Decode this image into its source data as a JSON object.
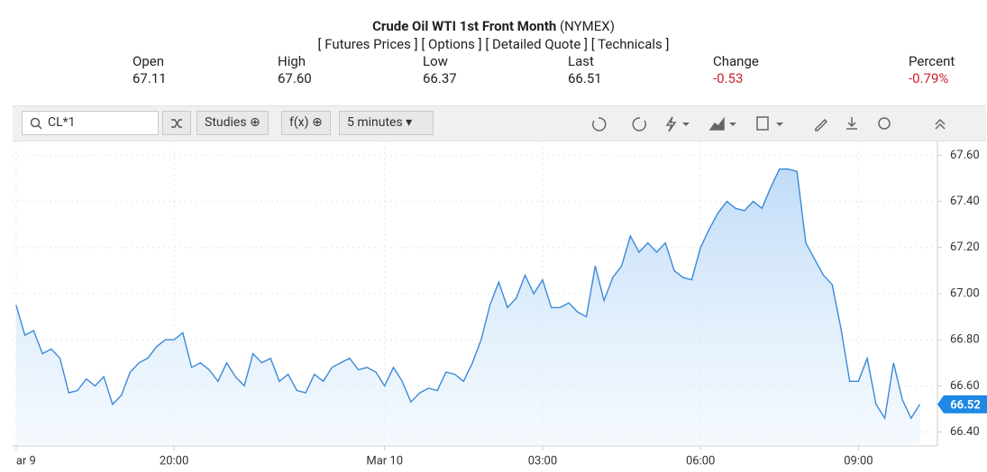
{
  "header": {
    "title": "Crude Oil WTI 1st Front Month",
    "exchange": "(NYMEX)",
    "links": [
      "[ Futures Prices ]",
      "[ Options ]",
      "[ Detailed Quote ]",
      "[ Technicals ]"
    ]
  },
  "quote": [
    {
      "label": "Open",
      "value": "67.11"
    },
    {
      "label": "High",
      "value": "67.60"
    },
    {
      "label": "Low",
      "value": "66.37"
    },
    {
      "label": "Last",
      "value": "66.51"
    },
    {
      "label": "Change",
      "value": "-0.53"
    },
    {
      "label": "Percent",
      "value": "-0.79%"
    }
  ],
  "toolbar": {
    "symbol": "CL*1",
    "studies": "Studies",
    "fx": "f(x)",
    "interval": "5 minutes"
  },
  "chart_data": {
    "type": "line",
    "color": "#3a8ad8",
    "values": [
      66.95,
      66.82,
      66.84,
      66.74,
      66.76,
      66.72,
      66.57,
      66.58,
      66.63,
      66.6,
      66.64,
      66.52,
      66.56,
      66.66,
      66.7,
      66.72,
      66.77,
      66.8,
      66.8,
      66.83,
      66.68,
      66.7,
      66.67,
      66.62,
      66.7,
      66.64,
      66.6,
      66.74,
      66.7,
      66.72,
      66.62,
      66.65,
      66.58,
      66.57,
      66.65,
      66.62,
      66.68,
      66.7,
      66.72,
      66.67,
      66.68,
      66.66,
      66.6,
      66.68,
      66.62,
      66.53,
      66.57,
      66.59,
      66.58,
      66.66,
      66.65,
      66.62,
      66.7,
      66.8,
      66.95,
      67.05,
      66.94,
      66.98,
      67.08,
      67.0,
      67.06,
      66.94,
      66.94,
      66.96,
      66.92,
      66.9,
      67.12,
      66.97,
      67.07,
      67.12,
      67.25,
      67.18,
      67.22,
      67.18,
      67.22,
      67.1,
      67.07,
      67.06,
      67.2,
      67.28,
      67.35,
      67.4,
      67.37,
      67.36,
      67.4,
      67.37,
      67.46,
      67.54,
      67.54,
      67.53,
      67.22,
      67.15,
      67.08,
      67.04,
      66.85,
      66.62,
      66.62,
      66.72,
      66.52,
      66.46,
      66.7,
      66.54,
      66.46,
      66.52
    ],
    "xlim": [
      -0.5,
      105
    ],
    "xticks": [
      {
        "value": 0,
        "label": "ar 9"
      },
      {
        "value": 18,
        "label": "20:00"
      },
      {
        "value": 42,
        "label": "Mar 10"
      },
      {
        "value": 60,
        "label": "03:00"
      },
      {
        "value": 78,
        "label": "06:00"
      },
      {
        "value": 96,
        "label": "09:00"
      }
    ],
    "ylim": [
      66.34,
      67.66
    ],
    "yticks": [
      {
        "value": 66.4,
        "label": "66.40"
      },
      {
        "value": 66.6,
        "label": "66.60"
      },
      {
        "value": 66.8,
        "label": "66.80"
      },
      {
        "value": 67,
        "label": "67.00"
      },
      {
        "value": 67.2,
        "label": "67.20"
      },
      {
        "value": 67.4,
        "label": "67.40"
      },
      {
        "value": 67.6,
        "label": "67.60"
      }
    ],
    "grid": true
  }
}
